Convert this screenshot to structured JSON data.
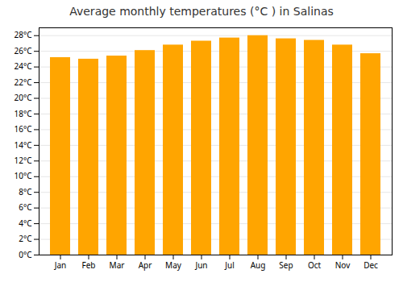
{
  "chart_data": {
    "type": "bar",
    "title": "Average monthly temperatures (°C ) in Salinas",
    "categories": [
      "Jan",
      "Feb",
      "Mar",
      "Apr",
      "May",
      "Jun",
      "Jul",
      "Aug",
      "Sep",
      "Oct",
      "Nov",
      "Dec"
    ],
    "values": [
      25.2,
      25.0,
      25.4,
      26.1,
      26.8,
      27.3,
      27.7,
      28.0,
      27.6,
      27.4,
      26.8,
      25.7
    ],
    "color": "#FFA500",
    "ylim": [
      0,
      29
    ],
    "yticks": [
      {
        "value": 0,
        "label": "0°C"
      },
      {
        "value": 2,
        "label": "2°C"
      },
      {
        "value": 4,
        "label": "4°C"
      },
      {
        "value": 6,
        "label": "6°C"
      },
      {
        "value": 8,
        "label": "8°C"
      },
      {
        "value": 10,
        "label": "10°C"
      },
      {
        "value": 12,
        "label": "12°C"
      },
      {
        "value": 14,
        "label": "14°C"
      },
      {
        "value": 16,
        "label": "16°C"
      },
      {
        "value": 18,
        "label": "18°C"
      },
      {
        "value": 20,
        "label": "20°C"
      },
      {
        "value": 22,
        "label": "22°C"
      },
      {
        "value": 24,
        "label": "24°C"
      },
      {
        "value": 26,
        "label": "26°C"
      },
      {
        "value": 28,
        "label": "28°C"
      }
    ],
    "grid": true
  }
}
